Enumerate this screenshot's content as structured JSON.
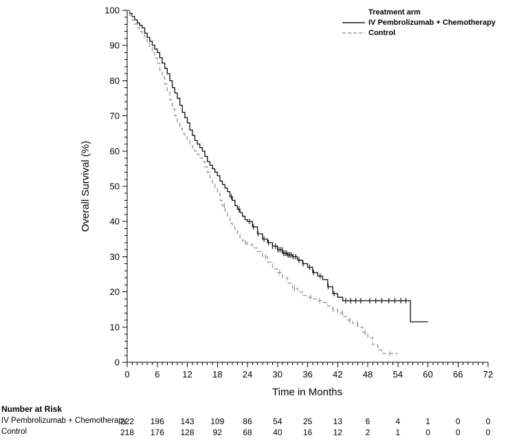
{
  "chart_data": {
    "type": "line",
    "subtype": "kaplan-meier-step",
    "title": "",
    "xlabel": "Time in Months",
    "ylabel": "Overall Survival (%)",
    "xlim": [
      0,
      72
    ],
    "ylim": [
      0,
      100
    ],
    "x_ticks": [
      0,
      6,
      12,
      18,
      24,
      30,
      36,
      42,
      48,
      54,
      60,
      66,
      72
    ],
    "y_ticks": [
      0,
      10,
      20,
      30,
      40,
      50,
      60,
      70,
      80,
      90,
      100
    ],
    "x_minor_step": 1,
    "y_minor_step": 2,
    "grid": false,
    "legend": {
      "position": "top-right-inside",
      "title": "Treatment arm",
      "entries": [
        {
          "label": "IV Pembrolizumab + Chemotherapy",
          "style": "solid",
          "color": "#1a1a1a"
        },
        {
          "label": "Control",
          "style": "dashed",
          "color": "#999999"
        }
      ]
    },
    "series": [
      {
        "name": "IV Pembrolizumab + Chemotherapy",
        "style": "solid",
        "color": "#1a1a1a",
        "points": [
          [
            0,
            100
          ],
          [
            0.5,
            99.1
          ],
          [
            1,
            98.2
          ],
          [
            1.5,
            97.3
          ],
          [
            2,
            96.4
          ],
          [
            2.5,
            95.7
          ],
          [
            3,
            95
          ],
          [
            3.5,
            93.5
          ],
          [
            4,
            92.3
          ],
          [
            4.5,
            91.2
          ],
          [
            5,
            90.1
          ],
          [
            5.5,
            89
          ],
          [
            6,
            88
          ],
          [
            6.5,
            86.5
          ],
          [
            7,
            85
          ],
          [
            7.5,
            83.5
          ],
          [
            8,
            82
          ],
          [
            8.5,
            80
          ],
          [
            9,
            78
          ],
          [
            9.5,
            76.5
          ],
          [
            10,
            75
          ],
          [
            10.5,
            73
          ],
          [
            11,
            71
          ],
          [
            11.5,
            69.5
          ],
          [
            12,
            68
          ],
          [
            12.5,
            66
          ],
          [
            13,
            64.5
          ],
          [
            13.5,
            63
          ],
          [
            14,
            62
          ],
          [
            14.5,
            61
          ],
          [
            15,
            60
          ],
          [
            15.5,
            58.5
          ],
          [
            16,
            57
          ],
          [
            16.5,
            56
          ],
          [
            17,
            55
          ],
          [
            17.5,
            54
          ],
          [
            18,
            53
          ],
          [
            18.5,
            51.5
          ],
          [
            19,
            50.5
          ],
          [
            19.5,
            49.5
          ],
          [
            20,
            48.5
          ],
          [
            20.5,
            47
          ],
          [
            21,
            46
          ],
          [
            21.5,
            44.5
          ],
          [
            22,
            43.5
          ],
          [
            22.5,
            42.5
          ],
          [
            23,
            41.5
          ],
          [
            23.5,
            40.5
          ],
          [
            24,
            40
          ],
          [
            25,
            38.5
          ],
          [
            26,
            36.5
          ],
          [
            27,
            35
          ],
          [
            28,
            34
          ],
          [
            29,
            33
          ],
          [
            30,
            32
          ],
          [
            31,
            31
          ],
          [
            32,
            30.5
          ],
          [
            33,
            30
          ],
          [
            34,
            29
          ],
          [
            35,
            28
          ],
          [
            36,
            27
          ],
          [
            37,
            25.5
          ],
          [
            38,
            24.5
          ],
          [
            39,
            23.5
          ],
          [
            40,
            21.5
          ],
          [
            41,
            19.5
          ],
          [
            42,
            18.5
          ],
          [
            43,
            17.5
          ],
          [
            56.5,
            11.5
          ],
          [
            60,
            11.5
          ]
        ],
        "censor_times": [
          20.8,
          22.3,
          24.4,
          25.2,
          26.1,
          27.3,
          28.2,
          29,
          29.6,
          30.1,
          30.5,
          30.9,
          31.2,
          31.5,
          31.8,
          32.1,
          32.4,
          32.7,
          33.1,
          33.6,
          34.3,
          35.1,
          36.4,
          37.2,
          38.5,
          40.1,
          41.3,
          43.6,
          44.6,
          45.6,
          46.6,
          48.4,
          49.6,
          50.8,
          52.2,
          53.4,
          54.6,
          55.6
        ]
      },
      {
        "name": "Control",
        "style": "dashed",
        "color": "#999999",
        "points": [
          [
            0,
            100
          ],
          [
            0.5,
            98.6
          ],
          [
            1,
            97.2
          ],
          [
            1.5,
            96.1
          ],
          [
            2,
            95
          ],
          [
            2.5,
            94
          ],
          [
            3,
            93
          ],
          [
            3.5,
            92
          ],
          [
            4,
            91
          ],
          [
            4.5,
            89.5
          ],
          [
            5,
            88
          ],
          [
            5.5,
            86.5
          ],
          [
            6,
            85
          ],
          [
            6.5,
            83
          ],
          [
            7,
            81
          ],
          [
            7.5,
            79
          ],
          [
            8,
            77
          ],
          [
            8.5,
            74.5
          ],
          [
            9,
            72
          ],
          [
            9.5,
            70
          ],
          [
            10,
            68
          ],
          [
            10.5,
            66.5
          ],
          [
            11,
            65
          ],
          [
            11.5,
            64
          ],
          [
            12,
            63
          ],
          [
            12.5,
            62
          ],
          [
            13,
            61
          ],
          [
            13.5,
            60
          ],
          [
            14,
            59
          ],
          [
            14.5,
            58
          ],
          [
            15,
            57
          ],
          [
            15.5,
            55.5
          ],
          [
            16,
            54
          ],
          [
            16.5,
            52.5
          ],
          [
            17,
            51
          ],
          [
            17.5,
            49.5
          ],
          [
            18,
            48
          ],
          [
            18.5,
            46
          ],
          [
            19,
            44.5
          ],
          [
            19.5,
            43
          ],
          [
            20,
            41.5
          ],
          [
            20.5,
            39.5
          ],
          [
            21,
            38.5
          ],
          [
            21.5,
            37.5
          ],
          [
            22,
            36.5
          ],
          [
            22.5,
            35.5
          ],
          [
            23,
            34.5
          ],
          [
            23.5,
            34
          ],
          [
            24,
            33.5
          ],
          [
            25,
            32.5
          ],
          [
            26,
            31.5
          ],
          [
            27,
            30
          ],
          [
            28,
            28.5
          ],
          [
            29,
            26.5
          ],
          [
            30,
            25.5
          ],
          [
            31,
            24
          ],
          [
            32,
            22.5
          ],
          [
            33,
            21
          ],
          [
            34,
            20
          ],
          [
            35,
            19
          ],
          [
            36,
            18.5
          ],
          [
            37,
            18
          ],
          [
            38,
            17.5
          ],
          [
            39,
            17
          ],
          [
            40,
            16
          ],
          [
            41,
            15
          ],
          [
            42,
            14
          ],
          [
            43,
            13
          ],
          [
            44,
            12
          ],
          [
            45,
            11
          ],
          [
            46,
            10
          ],
          [
            47,
            8.5
          ],
          [
            48,
            7
          ],
          [
            49,
            5
          ],
          [
            50,
            3.5
          ],
          [
            50.8,
            2.5
          ],
          [
            54,
            2.5
          ]
        ],
        "censor_times": [
          19.4,
          23.6,
          27.6,
          30.4,
          33.4,
          36.6,
          38.4,
          41.1,
          42.9,
          44.4,
          45.9,
          47.5,
          52.4
        ]
      }
    ],
    "risk_table": {
      "title": "Number at Risk",
      "times": [
        0,
        6,
        12,
        18,
        24,
        30,
        36,
        42,
        48,
        54,
        60,
        66,
        72
      ],
      "rows": [
        {
          "label": "IV Pembrolizumab + Chemotherapy",
          "counts": [
            222,
            196,
            143,
            109,
            86,
            54,
            25,
            13,
            6,
            4,
            1,
            0,
            0
          ]
        },
        {
          "label": "Control",
          "counts": [
            218,
            176,
            128,
            92,
            68,
            40,
            16,
            12,
            2,
            1,
            0,
            0,
            0
          ]
        }
      ]
    }
  }
}
